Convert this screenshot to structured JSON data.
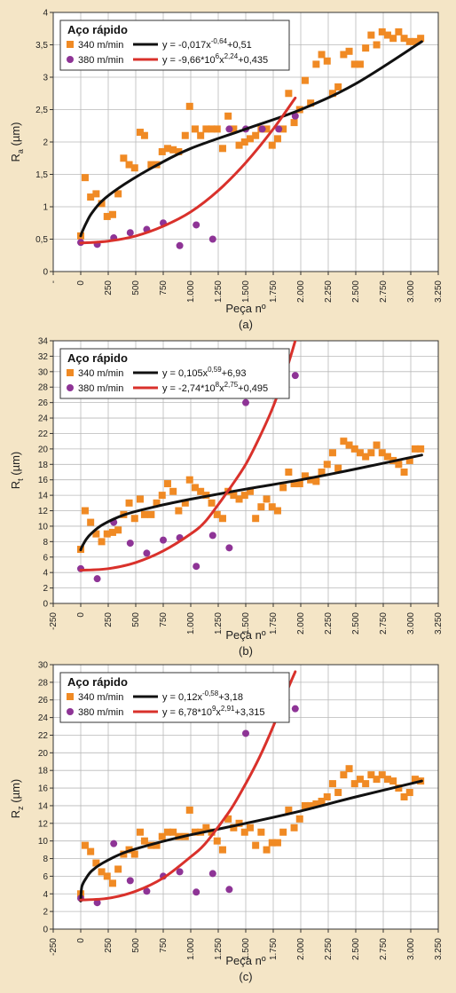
{
  "chart_data": [
    {
      "type": "scatter",
      "caption": "(a)",
      "xlabel": "Peça nº",
      "ylabel": "Ra (µm)",
      "ylabel_main": "R",
      "ylabel_sub": "a",
      "ylabel_unit": " (µm)",
      "xlim": [
        -250,
        3250
      ],
      "ylim": [
        0,
        4
      ],
      "xticks": [
        -250,
        0,
        250,
        500,
        750,
        1000,
        1250,
        1500,
        1750,
        2000,
        2250,
        2500,
        2750,
        3000,
        3250
      ],
      "xtick_labels": [
        "-",
        "0",
        "250",
        "500",
        "750",
        "1.000",
        "1.250",
        "1.500",
        "1.750",
        "2.000",
        "2.250",
        "2.500",
        "2.750",
        "3.000",
        "3.250"
      ],
      "yticks": [
        0,
        0.5,
        1,
        1.5,
        2,
        2.5,
        3,
        3.5,
        4
      ],
      "ytick_labels": [
        "0",
        "0,5",
        "1",
        "1,5",
        "2",
        "2,5",
        "3",
        "3,5",
        "4"
      ],
      "grid": true,
      "legend": {
        "title": "Aço rápido",
        "entries": [
          {
            "label": "340 m/min",
            "eq_base": "y = -0,017x",
            "eq_sup": "-0,64",
            "eq_rest": "+0,51"
          },
          {
            "label": "380 m/min",
            "eq_base": "y = -9,66*10",
            "eq_sup": "6",
            "eq_mid": "x",
            "eq_sup2": "2,24",
            "eq_rest": "+0,435"
          }
        ]
      },
      "series": [
        {
          "name": "340 m/min",
          "marker": "square",
          "color": "#f08a24",
          "x": [
            0,
            40,
            90,
            140,
            190,
            240,
            290,
            340,
            390,
            440,
            490,
            540,
            580,
            640,
            690,
            740,
            790,
            840,
            890,
            950,
            990,
            1040,
            1090,
            1140,
            1190,
            1240,
            1290,
            1340,
            1390,
            1440,
            1490,
            1540,
            1590,
            1640,
            1690,
            1740,
            1790,
            1840,
            1890,
            1940,
            1990,
            2040,
            2090,
            2140,
            2190,
            2240,
            2290,
            2340,
            2390,
            2440,
            2490,
            2540,
            2590,
            2640,
            2690,
            2740,
            2790,
            2840,
            2890,
            2940,
            2990,
            3040,
            3090
          ],
          "y": [
            0.55,
            1.45,
            1.15,
            1.2,
            1.05,
            0.85,
            0.88,
            1.2,
            1.75,
            1.65,
            1.6,
            2.15,
            2.1,
            1.65,
            1.65,
            1.85,
            1.9,
            1.88,
            1.85,
            2.1,
            2.55,
            2.2,
            2.1,
            2.2,
            2.2,
            2.2,
            1.9,
            2.4,
            2.2,
            1.95,
            2.0,
            2.05,
            2.1,
            2.2,
            2.2,
            1.95,
            2.05,
            2.2,
            2.75,
            2.3,
            2.5,
            2.95,
            2.6,
            3.2,
            3.35,
            3.25,
            2.75,
            2.85,
            3.35,
            3.4,
            3.2,
            3.2,
            3.45,
            3.65,
            3.5,
            3.7,
            3.65,
            3.6,
            3.7,
            3.6,
            3.55,
            3.55,
            3.6
          ]
        },
        {
          "name": "380 m/min",
          "marker": "circle",
          "color": "#8e3496",
          "x": [
            0,
            150,
            300,
            450,
            600,
            750,
            900,
            1050,
            1200,
            1350,
            1500,
            1650,
            1800,
            1950
          ],
          "y": [
            0.45,
            0.42,
            0.52,
            0.6,
            0.65,
            0.75,
            0.4,
            0.72,
            0.5,
            2.2,
            2.2,
            2.2,
            2.2,
            2.4
          ]
        }
      ],
      "fits": [
        {
          "color": "#111111",
          "x": [
            0,
            10,
            50,
            100,
            200,
            400,
            700,
            1000,
            1500,
            2000,
            2500,
            3100
          ],
          "y": [
            0.55,
            0.6,
            0.75,
            0.9,
            1.1,
            1.35,
            1.65,
            1.9,
            2.2,
            2.5,
            2.9,
            3.55
          ]
        },
        {
          "color": "#d9312b",
          "x": [
            0,
            250,
            500,
            750,
            1000,
            1250,
            1500,
            1750,
            1950
          ],
          "y": [
            0.44,
            0.47,
            0.55,
            0.7,
            0.92,
            1.25,
            1.68,
            2.2,
            2.68
          ]
        }
      ]
    },
    {
      "type": "scatter",
      "caption": "(b)",
      "xlabel": "Peça nº",
      "ylabel": "Rt (µm)",
      "ylabel_main": "R",
      "ylabel_sub": "t",
      "ylabel_unit": " (µm)",
      "xlim": [
        -250,
        3250
      ],
      "ylim": [
        0,
        34
      ],
      "xticks": [
        -250,
        0,
        250,
        500,
        750,
        1000,
        1250,
        1500,
        1750,
        2000,
        2250,
        2500,
        2750,
        3000,
        3250
      ],
      "xtick_labels": [
        "-250",
        "0",
        "250",
        "500",
        "750",
        "1.000",
        "1.250",
        "1.500",
        "1.750",
        "2.000",
        "2.250",
        "2.500",
        "2.750",
        "3.000",
        "3.250"
      ],
      "yticks": [
        0,
        2,
        4,
        6,
        8,
        10,
        12,
        14,
        16,
        18,
        20,
        22,
        24,
        26,
        28,
        30,
        32,
        34
      ],
      "ytick_labels": [
        "0",
        "2",
        "4",
        "6",
        "8",
        "10",
        "12",
        "14",
        "16",
        "18",
        "20",
        "22",
        "24",
        "26",
        "28",
        "30",
        "32",
        "34"
      ],
      "grid": true,
      "legend": {
        "title": "Aço rápido",
        "entries": [
          {
            "label": "340 m/min",
            "eq_base": "y = 0,105x",
            "eq_sup": "0,59",
            "eq_rest": "+6,93"
          },
          {
            "label": "380 m/min",
            "eq_base": "y = -2,74*10",
            "eq_sup": "8",
            "eq_mid": "x",
            "eq_sup2": "2,75",
            "eq_rest": "+0,495"
          }
        ]
      },
      "series": [
        {
          "name": "340 m/min",
          "marker": "square",
          "color": "#f08a24",
          "x": [
            0,
            40,
            90,
            140,
            190,
            240,
            290,
            340,
            390,
            440,
            490,
            540,
            580,
            640,
            690,
            740,
            790,
            840,
            890,
            950,
            990,
            1040,
            1090,
            1140,
            1190,
            1240,
            1290,
            1340,
            1390,
            1440,
            1490,
            1540,
            1590,
            1640,
            1690,
            1740,
            1790,
            1840,
            1890,
            1940,
            1990,
            2040,
            2090,
            2140,
            2190,
            2240,
            2290,
            2340,
            2390,
            2440,
            2490,
            2540,
            2590,
            2640,
            2690,
            2740,
            2790,
            2840,
            2890,
            2940,
            2990,
            3040,
            3090
          ],
          "y": [
            7.0,
            12.0,
            10.5,
            9.0,
            8.0,
            9.0,
            9.2,
            9.5,
            11.5,
            13.0,
            11.0,
            13.5,
            11.5,
            11.5,
            13.0,
            14.0,
            15.5,
            14.5,
            12.0,
            13.0,
            16.0,
            15.0,
            14.5,
            14.0,
            13.0,
            11.5,
            11.0,
            14.5,
            14.0,
            13.5,
            14.0,
            14.5,
            11.0,
            12.5,
            13.5,
            12.5,
            12.0,
            15.0,
            17.0,
            15.5,
            15.5,
            16.5,
            16.0,
            15.8,
            17.0,
            18.0,
            19.5,
            17.5,
            21.0,
            20.5,
            20.0,
            19.5,
            19.0,
            19.5,
            20.5,
            19.5,
            19.0,
            18.5,
            18.0,
            17.0,
            18.5,
            20.0,
            20.0
          ]
        },
        {
          "name": "380 m/min",
          "marker": "circle",
          "color": "#8e3496",
          "x": [
            0,
            150,
            300,
            450,
            600,
            750,
            900,
            1050,
            1200,
            1350,
            1500,
            1650,
            1800,
            1950
          ],
          "y": [
            4.5,
            3.2,
            10.5,
            7.8,
            6.5,
            8.2,
            8.5,
            4.8,
            8.8,
            7.2,
            26.0,
            30.0,
            29.5,
            29.5
          ]
        }
      ],
      "fits": [
        {
          "color": "#111111",
          "x": [
            0,
            10,
            50,
            100,
            200,
            400,
            700,
            1000,
            1500,
            2000,
            2500,
            3100
          ],
          "y": [
            6.93,
            7.3,
            8.3,
            9.1,
            10.2,
            11.5,
            12.6,
            13.5,
            14.8,
            16.0,
            17.4,
            19.2
          ]
        },
        {
          "color": "#d9312b",
          "x": [
            0,
            250,
            500,
            750,
            1000,
            1125,
            1250,
            1375,
            1500,
            1625,
            1750,
            1875,
            1950
          ],
          "y": [
            4.3,
            4.5,
            5.3,
            6.8,
            9.0,
            10.5,
            12.8,
            15.3,
            18.0,
            21.5,
            25.5,
            30.5,
            34.0
          ]
        }
      ]
    },
    {
      "type": "scatter",
      "caption": "(c)",
      "xlabel": "Peça nº",
      "ylabel": "Rz (µm)",
      "ylabel_main": "R",
      "ylabel_sub": "z",
      "ylabel_unit": " (µm)",
      "xlim": [
        -250,
        3250
      ],
      "ylim": [
        0,
        30
      ],
      "xticks": [
        -250,
        0,
        250,
        500,
        750,
        1000,
        1250,
        1500,
        1750,
        2000,
        2250,
        2500,
        2750,
        3000,
        3250
      ],
      "xtick_labels": [
        "-250",
        "0",
        "250",
        "500",
        "750",
        "1.000",
        "1.250",
        "1.500",
        "1.750",
        "2.000",
        "2.250",
        "2.500",
        "2.750",
        "3.000",
        "3.250"
      ],
      "yticks": [
        0,
        2,
        4,
        6,
        8,
        10,
        12,
        14,
        16,
        18,
        20,
        22,
        24,
        26,
        28,
        30
      ],
      "ytick_labels": [
        "0",
        "2",
        "4",
        "6",
        "8",
        "10",
        "12",
        "14",
        "16",
        "18",
        "20",
        "22",
        "24",
        "26",
        "28",
        "30"
      ],
      "grid": true,
      "legend": {
        "title": "Aço rápido",
        "entries": [
          {
            "label": "340 m/min",
            "eq_base": "y = 0,12x",
            "eq_sup": "-0,58",
            "eq_rest": "+3,18"
          },
          {
            "label": "380 m/min",
            "eq_base": "y = 6,78*10",
            "eq_sup": "9",
            "eq_mid": "x",
            "eq_sup2": "2,91",
            "eq_rest": "+3,315"
          }
        ]
      },
      "series": [
        {
          "name": "340 m/min",
          "marker": "square",
          "color": "#f08a24",
          "x": [
            0,
            40,
            90,
            140,
            190,
            240,
            290,
            340,
            390,
            440,
            490,
            540,
            580,
            640,
            690,
            740,
            790,
            840,
            890,
            950,
            990,
            1040,
            1090,
            1140,
            1190,
            1240,
            1290,
            1340,
            1390,
            1440,
            1490,
            1540,
            1590,
            1640,
            1690,
            1740,
            1790,
            1840,
            1890,
            1940,
            1990,
            2040,
            2090,
            2140,
            2190,
            2240,
            2290,
            2340,
            2390,
            2440,
            2490,
            2540,
            2590,
            2640,
            2690,
            2740,
            2790,
            2840,
            2890,
            2940,
            2990,
            3040,
            3090
          ],
          "y": [
            4.0,
            9.5,
            8.8,
            7.5,
            6.5,
            6.0,
            5.2,
            6.8,
            8.5,
            9.0,
            8.5,
            11.0,
            10.0,
            9.5,
            9.5,
            10.5,
            11.0,
            11.0,
            10.5,
            10.5,
            13.5,
            11.0,
            11.0,
            11.5,
            11.0,
            10.0,
            9.0,
            12.5,
            11.5,
            12.0,
            11.0,
            11.5,
            9.5,
            11.0,
            9.0,
            9.8,
            9.8,
            11.0,
            13.5,
            11.5,
            12.5,
            14.0,
            14.0,
            14.2,
            14.5,
            15.0,
            16.5,
            15.5,
            17.5,
            18.2,
            16.5,
            17.0,
            16.5,
            17.5,
            17.0,
            17.5,
            17.0,
            16.8,
            16.0,
            15.0,
            15.5,
            17.0,
            16.8
          ]
        },
        {
          "name": "380 m/min",
          "marker": "circle",
          "color": "#8e3496",
          "x": [
            0,
            150,
            300,
            450,
            600,
            750,
            900,
            1050,
            1200,
            1350,
            1500,
            1650,
            1800,
            1950
          ],
          "y": [
            3.5,
            3.0,
            9.7,
            5.5,
            4.3,
            6.0,
            6.5,
            4.2,
            6.3,
            4.5,
            22.2,
            24.7,
            24.7,
            25.0
          ]
        }
      ],
      "fits": [
        {
          "color": "#111111",
          "x": [
            0,
            10,
            50,
            100,
            200,
            400,
            700,
            1000,
            1500,
            2000,
            2500,
            3100
          ],
          "y": [
            3.18,
            4.8,
            5.8,
            6.6,
            7.5,
            8.7,
            9.8,
            10.7,
            12.0,
            13.4,
            15.0,
            16.8
          ]
        },
        {
          "color": "#d9312b",
          "x": [
            0,
            250,
            500,
            750,
            1000,
            1125,
            1250,
            1375,
            1500,
            1625,
            1750,
            1875,
            1950
          ],
          "y": [
            3.3,
            3.5,
            4.3,
            5.8,
            8.2,
            9.6,
            11.6,
            13.8,
            16.5,
            19.5,
            23.0,
            27.0,
            29.2
          ]
        }
      ]
    }
  ]
}
